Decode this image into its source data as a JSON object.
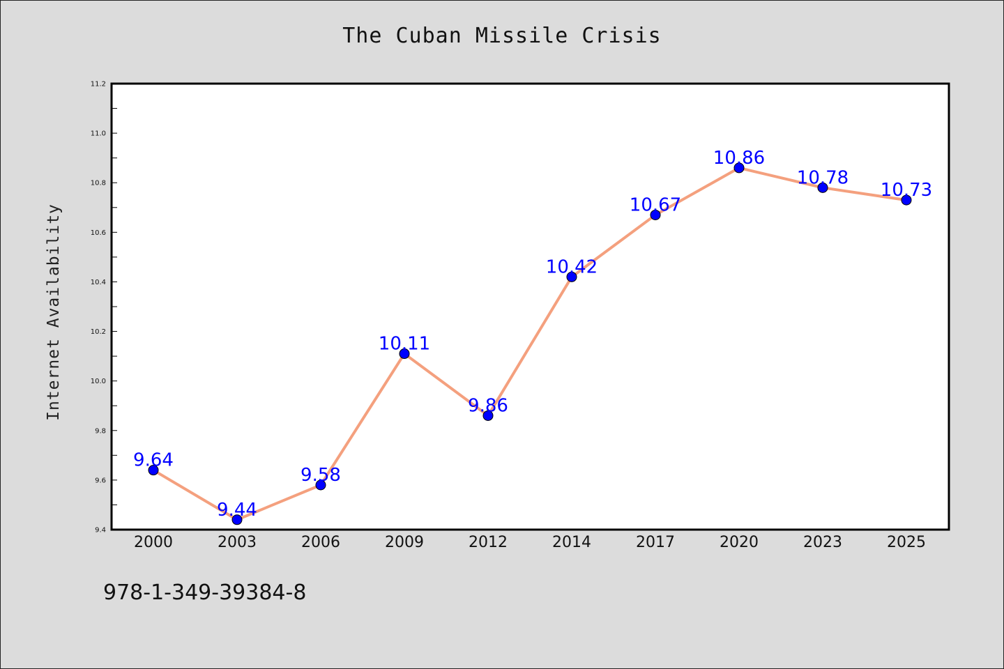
{
  "page": {
    "footer_code": "978-1-349-39384-8"
  },
  "colors": {
    "background": "#dcdcdc",
    "plot_background": "#ffffff",
    "line": "#f4a07e",
    "marker": "#0000ff",
    "data_label": "#0000ff"
  },
  "chart_data": {
    "type": "line",
    "title": "The Cuban Missile Crisis",
    "xlabel": "",
    "ylabel": "Internet Availability",
    "categories": [
      "2000",
      "2003",
      "2006",
      "2009",
      "2012",
      "2014",
      "2017",
      "2020",
      "2023",
      "2025"
    ],
    "series": [
      {
        "values": [
          9.64,
          9.44,
          9.58,
          10.11,
          9.86,
          10.42,
          10.67,
          10.86,
          10.78,
          10.73
        ],
        "labels": [
          "9.64",
          "9.44",
          "9.58",
          "10.11",
          "9.86",
          "10.42",
          "10.67",
          "10.86",
          "10.78",
          "10.73"
        ]
      }
    ],
    "ylim": [
      9.4,
      11.2
    ],
    "yticks": [
      "9.4",
      "9.6",
      "9.8",
      "10.0",
      "10.2",
      "10.4",
      "10.6",
      "10.8",
      "11.0",
      "11.2"
    ],
    "grid": false,
    "legend": "none"
  }
}
